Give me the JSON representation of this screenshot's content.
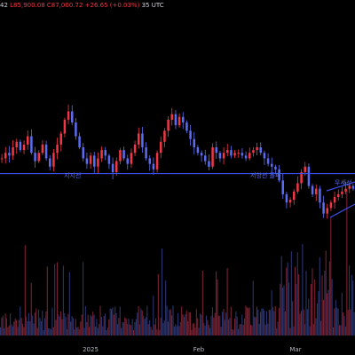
{
  "header": {
    "time_text": "35 UTC",
    "ohlc_text": "L85,900.08  C87,000.72  +26.65 (+0.03%)",
    "left_value": "42"
  },
  "annotations": {
    "support_label": "지지선",
    "breakout_label": "저항선 돌파",
    "right_label": "우세선"
  },
  "colors": {
    "background": "#000000",
    "up": "#f23645",
    "down": "#5b6cf2",
    "line": "#3d4ee8",
    "volume_up": "#7a2233",
    "volume_down": "#2a356f",
    "text": "#b2b5be"
  },
  "chart_data": {
    "type": "candlestick",
    "x_labels": [
      "2025",
      "Feb",
      "Mar"
    ],
    "support_line": 0.525,
    "series_shape": [
      0.58,
      0.6,
      0.59,
      0.62,
      0.64,
      0.61,
      0.63,
      0.66,
      0.6,
      0.57,
      0.6,
      0.63,
      0.58,
      0.55,
      0.6,
      0.63,
      0.67,
      0.72,
      0.75,
      0.71,
      0.66,
      0.62,
      0.58,
      0.56,
      0.59,
      0.55,
      0.58,
      0.61,
      0.59,
      0.56,
      0.53,
      0.57,
      0.61,
      0.58,
      0.56,
      0.6,
      0.63,
      0.67,
      0.62,
      0.58,
      0.56,
      0.54,
      0.6,
      0.64,
      0.68,
      0.72,
      0.74,
      0.7,
      0.73,
      0.71,
      0.68,
      0.65,
      0.62,
      0.6,
      0.59,
      0.57,
      0.55,
      0.62,
      0.6,
      0.58,
      0.6,
      0.61,
      0.59,
      0.6,
      0.6,
      0.59,
      0.58,
      0.6,
      0.61,
      0.62,
      0.6,
      0.58,
      0.56,
      0.55,
      0.54,
      0.5,
      0.45,
      0.42,
      0.43,
      0.46,
      0.49,
      0.53,
      0.55,
      0.48,
      0.45,
      0.47,
      0.42,
      0.38,
      0.4,
      0.42,
      0.44,
      0.45,
      0.46,
      0.47,
      0.48,
      0.47
    ]
  }
}
